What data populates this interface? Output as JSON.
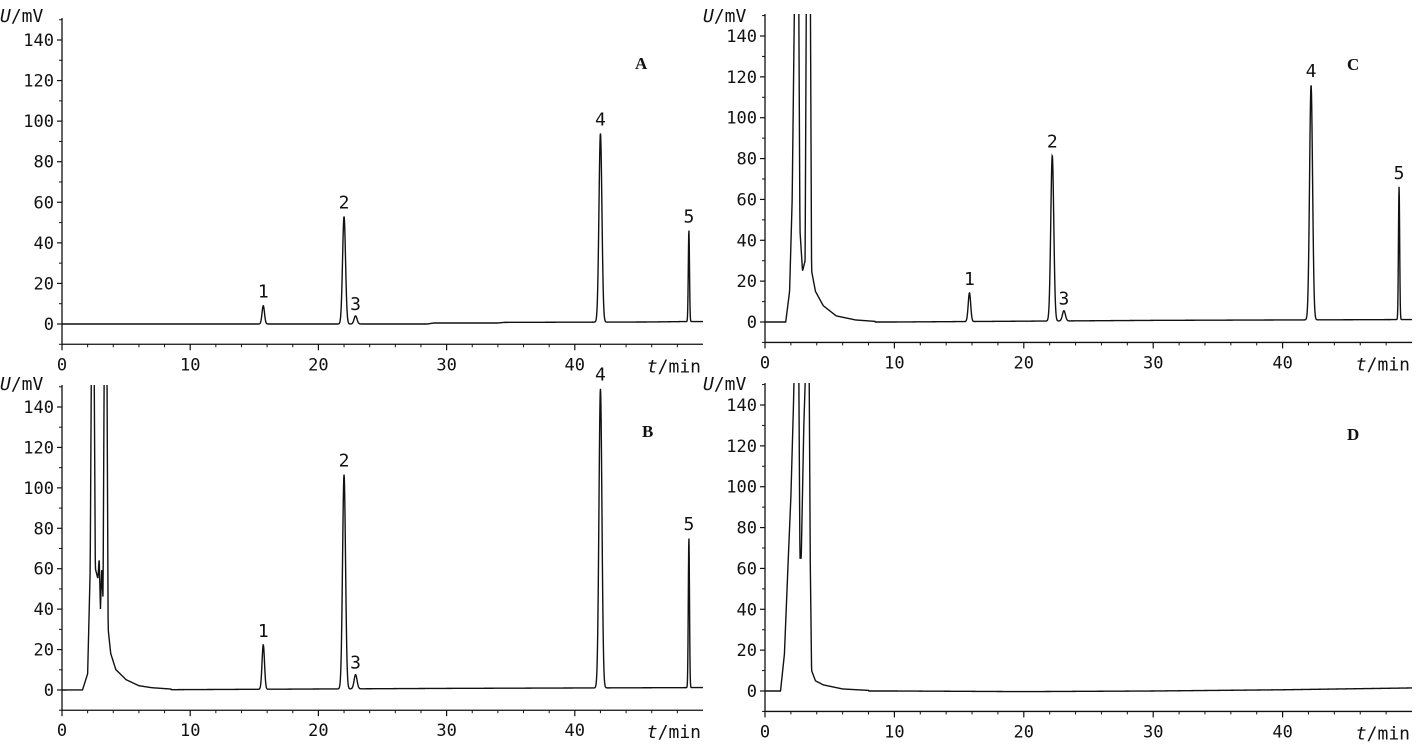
{
  "chart_data": [
    {
      "type": "line",
      "panel": "A",
      "xlabel_var": "t",
      "xlabel_unit": "/min",
      "ylabel_var": "U",
      "ylabel_unit": "/mV",
      "xlim": [
        0,
        50
      ],
      "ylim": [
        -10,
        155
      ],
      "xticks": [
        0,
        10,
        20,
        30,
        40
      ],
      "yticks": [
        0,
        20,
        40,
        60,
        80,
        100,
        120,
        140
      ],
      "xtick_labels": [
        "0",
        "10",
        "20",
        "30",
        "40"
      ],
      "ytick_labels": [
        "0",
        "20",
        "40",
        "60",
        "80",
        "100",
        "120",
        "140"
      ],
      "grid": false,
      "baseline_points": [
        [
          0,
          0
        ],
        [
          28.5,
          0
        ],
        [
          29,
          0.5
        ],
        [
          34,
          0.5
        ],
        [
          34.5,
          0.8
        ],
        [
          46,
          1
        ],
        [
          48.5,
          1.2
        ],
        [
          50,
          1.2
        ]
      ],
      "peaks": [
        {
          "label": "1",
          "x": 15.7,
          "y": 9,
          "width": 0.25
        },
        {
          "label": "2",
          "x": 22.0,
          "y": 53,
          "width": 0.3
        },
        {
          "label": "3",
          "x": 22.9,
          "y": 4,
          "width": 0.3
        },
        {
          "label": "4",
          "x": 42.0,
          "y": 93,
          "width": 0.3
        },
        {
          "label": "5",
          "x": 48.9,
          "y": 45,
          "width": 0.12
        }
      ],
      "solvent": []
    },
    {
      "type": "line",
      "panel": "B",
      "xlabel_var": "t",
      "xlabel_unit": "/min",
      "ylabel_var": "U",
      "ylabel_unit": "/mV",
      "xlim": [
        0,
        50
      ],
      "ylim": [
        -10,
        155
      ],
      "xticks": [
        0,
        10,
        20,
        30,
        40
      ],
      "yticks": [
        0,
        20,
        40,
        60,
        80,
        100,
        120,
        140
      ],
      "xtick_labels": [
        "0",
        "10",
        "20",
        "30",
        "40"
      ],
      "ytick_labels": [
        "0",
        "20",
        "40",
        "60",
        "80",
        "100",
        "120",
        "140"
      ],
      "grid": false,
      "baseline_points": [
        [
          0,
          0
        ],
        [
          10,
          0.2
        ],
        [
          30,
          0.8
        ],
        [
          50,
          1.2
        ]
      ],
      "peaks": [
        {
          "label": "1",
          "x": 15.7,
          "y": 22,
          "width": 0.25
        },
        {
          "label": "2",
          "x": 22.0,
          "y": 106,
          "width": 0.3
        },
        {
          "label": "3",
          "x": 22.9,
          "y": 7,
          "width": 0.3
        },
        {
          "label": "4",
          "x": 42.0,
          "y": 148,
          "width": 0.3
        },
        {
          "label": "5",
          "x": 48.9,
          "y": 74,
          "width": 0.12
        }
      ],
      "solvent": [
        [
          1.6,
          0
        ],
        [
          2.0,
          8
        ],
        [
          2.2,
          60
        ],
        [
          2.3,
          170
        ],
        [
          2.5,
          170
        ],
        [
          2.6,
          60
        ],
        [
          2.8,
          55
        ],
        [
          2.9,
          65
        ],
        [
          3.0,
          40
        ],
        [
          3.1,
          60
        ],
        [
          3.2,
          45
        ],
        [
          3.3,
          170
        ],
        [
          3.5,
          170
        ],
        [
          3.6,
          30
        ],
        [
          3.8,
          18
        ],
        [
          4.2,
          10
        ],
        [
          5.0,
          5
        ],
        [
          6.0,
          2
        ],
        [
          7.0,
          1
        ],
        [
          8.5,
          0.3
        ]
      ]
    },
    {
      "type": "line",
      "panel": "C",
      "xlabel_var": "t",
      "xlabel_unit": "/min",
      "ylabel_var": "U",
      "ylabel_unit": "/mV",
      "xlim": [
        0,
        50
      ],
      "ylim": [
        -10,
        155
      ],
      "xticks": [
        0,
        10,
        20,
        30,
        40
      ],
      "yticks": [
        0,
        20,
        40,
        60,
        80,
        100,
        120,
        140
      ],
      "xtick_labels": [
        "0",
        "10",
        "20",
        "30",
        "40"
      ],
      "ytick_labels": [
        "0",
        "20",
        "40",
        "60",
        "80",
        "100",
        "120",
        "140"
      ],
      "grid": false,
      "baseline_points": [
        [
          0,
          0
        ],
        [
          10,
          0
        ],
        [
          30,
          0.8
        ],
        [
          50,
          1.2
        ]
      ],
      "peaks": [
        {
          "label": "1",
          "x": 15.8,
          "y": 14,
          "width": 0.25
        },
        {
          "label": "2",
          "x": 22.2,
          "y": 81,
          "width": 0.3
        },
        {
          "label": "3",
          "x": 23.1,
          "y": 5,
          "width": 0.3
        },
        {
          "label": "4",
          "x": 42.2,
          "y": 115,
          "width": 0.3
        },
        {
          "label": "5",
          "x": 49.0,
          "y": 65,
          "width": 0.12
        }
      ],
      "solvent": [
        [
          1.6,
          0
        ],
        [
          1.9,
          15
        ],
        [
          2.1,
          60
        ],
        [
          2.3,
          170
        ],
        [
          2.6,
          170
        ],
        [
          2.7,
          45
        ],
        [
          2.9,
          25
        ],
        [
          3.1,
          30
        ],
        [
          3.2,
          170
        ],
        [
          3.5,
          170
        ],
        [
          3.6,
          25
        ],
        [
          3.9,
          15
        ],
        [
          4.5,
          8
        ],
        [
          5.5,
          3
        ],
        [
          7.0,
          1
        ],
        [
          8.5,
          0.3
        ]
      ]
    },
    {
      "type": "line",
      "panel": "D",
      "xlabel_var": "t",
      "xlabel_unit": "/min",
      "ylabel_var": "U",
      "ylabel_unit": "/mV",
      "xlim": [
        0,
        50
      ],
      "ylim": [
        -10,
        155
      ],
      "xticks": [
        0,
        10,
        20,
        30,
        40
      ],
      "yticks": [
        0,
        20,
        40,
        60,
        80,
        100,
        120,
        140
      ],
      "xtick_labels": [
        "0",
        "10",
        "20",
        "30",
        "40"
      ],
      "ytick_labels": [
        "0",
        "20",
        "40",
        "60",
        "80",
        "100",
        "120",
        "140"
      ],
      "grid": false,
      "baseline_points": [
        [
          0,
          0
        ],
        [
          10,
          0
        ],
        [
          20,
          -0.3
        ],
        [
          30,
          0
        ],
        [
          40,
          0.6
        ],
        [
          50,
          1.5
        ]
      ],
      "peaks": [],
      "solvent": [
        [
          1.2,
          0
        ],
        [
          1.5,
          18
        ],
        [
          1.8,
          65
        ],
        [
          2.0,
          95
        ],
        [
          2.2,
          140
        ],
        [
          2.3,
          170
        ],
        [
          2.6,
          170
        ],
        [
          2.7,
          65
        ],
        [
          2.8,
          65
        ],
        [
          3.0,
          130
        ],
        [
          3.2,
          170
        ],
        [
          3.4,
          170
        ],
        [
          3.5,
          62
        ],
        [
          3.6,
          10
        ],
        [
          3.9,
          5
        ],
        [
          4.5,
          3
        ],
        [
          6.0,
          1
        ],
        [
          8.0,
          0.3
        ]
      ]
    }
  ]
}
